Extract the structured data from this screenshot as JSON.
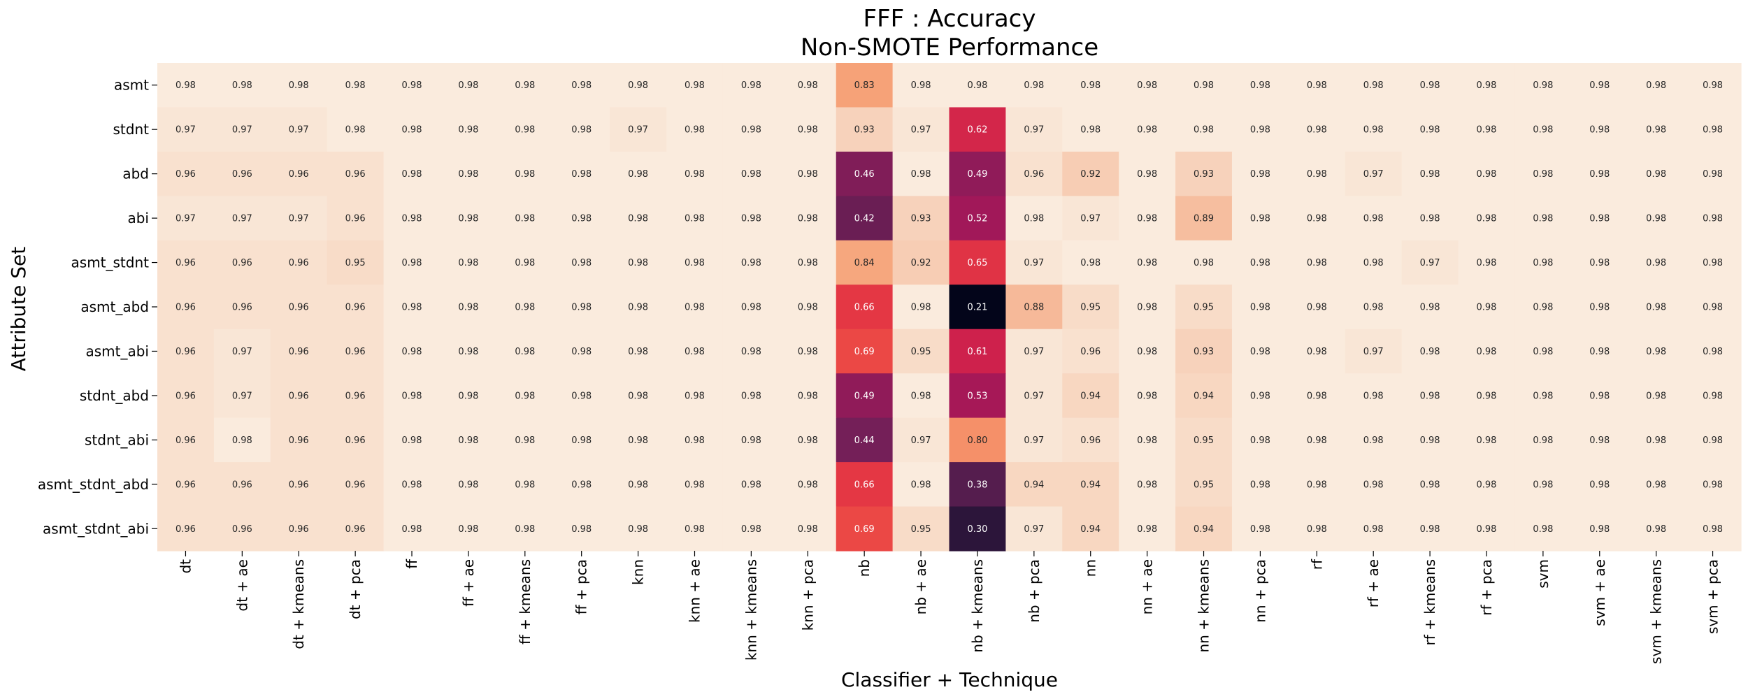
{
  "chart_data": {
    "type": "heatmap",
    "title": "FFF : Accuracy",
    "subtitle": "Non-SMOTE Performance",
    "xlabel": "Classifier + Technique",
    "ylabel": "Attribute Set",
    "x_categories": [
      "dt",
      "dt + ae",
      "dt + kmeans",
      "dt + pca",
      "ff",
      "ff + ae",
      "ff + kmeans",
      "ff + pca",
      "knn",
      "knn + ae",
      "knn + kmeans",
      "knn + pca",
      "nb",
      "nb + ae",
      "nb + kmeans",
      "nb + pca",
      "nn",
      "nn + ae",
      "nn + kmeans",
      "nn + pca",
      "rf",
      "rf + ae",
      "rf + kmeans",
      "rf + pca",
      "svm",
      "svm + ae",
      "svm + kmeans",
      "svm + pca"
    ],
    "y_categories": [
      "asmt",
      "stdnt",
      "abd",
      "abi",
      "asmt_stdnt",
      "asmt_abd",
      "asmt_abi",
      "stdnt_abd",
      "stdnt_abi",
      "asmt_stdnt_abd",
      "asmt_stdnt_abi"
    ],
    "values": [
      [
        0.98,
        0.98,
        0.98,
        0.98,
        0.98,
        0.98,
        0.98,
        0.98,
        0.98,
        0.98,
        0.98,
        0.98,
        0.83,
        0.98,
        0.98,
        0.98,
        0.98,
        0.98,
        0.98,
        0.98,
        0.98,
        0.98,
        0.98,
        0.98,
        0.98,
        0.98,
        0.98,
        0.98
      ],
      [
        0.97,
        0.97,
        0.97,
        0.98,
        0.98,
        0.98,
        0.98,
        0.98,
        0.97,
        0.98,
        0.98,
        0.98,
        0.93,
        0.97,
        0.62,
        0.97,
        0.98,
        0.98,
        0.98,
        0.98,
        0.98,
        0.98,
        0.98,
        0.98,
        0.98,
        0.98,
        0.98,
        0.98
      ],
      [
        0.96,
        0.96,
        0.96,
        0.96,
        0.98,
        0.98,
        0.98,
        0.98,
        0.98,
        0.98,
        0.98,
        0.98,
        0.46,
        0.98,
        0.49,
        0.96,
        0.92,
        0.98,
        0.93,
        0.98,
        0.98,
        0.97,
        0.98,
        0.98,
        0.98,
        0.98,
        0.98,
        0.98
      ],
      [
        0.97,
        0.97,
        0.97,
        0.96,
        0.98,
        0.98,
        0.98,
        0.98,
        0.98,
        0.98,
        0.98,
        0.98,
        0.42,
        0.93,
        0.52,
        0.98,
        0.97,
        0.98,
        0.89,
        0.98,
        0.98,
        0.98,
        0.98,
        0.98,
        0.98,
        0.98,
        0.98,
        0.98
      ],
      [
        0.96,
        0.96,
        0.96,
        0.95,
        0.98,
        0.98,
        0.98,
        0.98,
        0.98,
        0.98,
        0.98,
        0.98,
        0.84,
        0.92,
        0.65,
        0.97,
        0.98,
        0.98,
        0.98,
        0.98,
        0.98,
        0.98,
        0.97,
        0.98,
        0.98,
        0.98,
        0.98,
        0.98
      ],
      [
        0.96,
        0.96,
        0.96,
        0.96,
        0.98,
        0.98,
        0.98,
        0.98,
        0.98,
        0.98,
        0.98,
        0.98,
        0.66,
        0.98,
        0.21,
        0.88,
        0.95,
        0.98,
        0.95,
        0.98,
        0.98,
        0.98,
        0.98,
        0.98,
        0.98,
        0.98,
        0.98,
        0.98
      ],
      [
        0.96,
        0.97,
        0.96,
        0.96,
        0.98,
        0.98,
        0.98,
        0.98,
        0.98,
        0.98,
        0.98,
        0.98,
        0.69,
        0.95,
        0.61,
        0.97,
        0.96,
        0.98,
        0.93,
        0.98,
        0.98,
        0.97,
        0.98,
        0.98,
        0.98,
        0.98,
        0.98,
        0.98
      ],
      [
        0.96,
        0.97,
        0.96,
        0.96,
        0.98,
        0.98,
        0.98,
        0.98,
        0.98,
        0.98,
        0.98,
        0.98,
        0.49,
        0.98,
        0.53,
        0.97,
        0.94,
        0.98,
        0.94,
        0.98,
        0.98,
        0.98,
        0.98,
        0.98,
        0.98,
        0.98,
        0.98,
        0.98
      ],
      [
        0.96,
        0.98,
        0.96,
        0.96,
        0.98,
        0.98,
        0.98,
        0.98,
        0.98,
        0.98,
        0.98,
        0.98,
        0.44,
        0.97,
        0.8,
        0.97,
        0.96,
        0.98,
        0.95,
        0.98,
        0.98,
        0.98,
        0.98,
        0.98,
        0.98,
        0.98,
        0.98,
        0.98
      ],
      [
        0.96,
        0.96,
        0.96,
        0.96,
        0.98,
        0.98,
        0.98,
        0.98,
        0.98,
        0.98,
        0.98,
        0.98,
        0.66,
        0.98,
        0.38,
        0.94,
        0.94,
        0.98,
        0.95,
        0.98,
        0.98,
        0.98,
        0.98,
        0.98,
        0.98,
        0.98,
        0.98,
        0.98
      ],
      [
        0.96,
        0.96,
        0.96,
        0.96,
        0.98,
        0.98,
        0.98,
        0.98,
        0.98,
        0.98,
        0.98,
        0.98,
        0.69,
        0.95,
        0.3,
        0.97,
        0.94,
        0.98,
        0.94,
        0.98,
        0.98,
        0.98,
        0.98,
        0.98,
        0.98,
        0.98,
        0.98,
        0.98
      ]
    ],
    "value_format": "2 decimals",
    "colormap": "rocket",
    "colorbar": false,
    "grid": false
  }
}
